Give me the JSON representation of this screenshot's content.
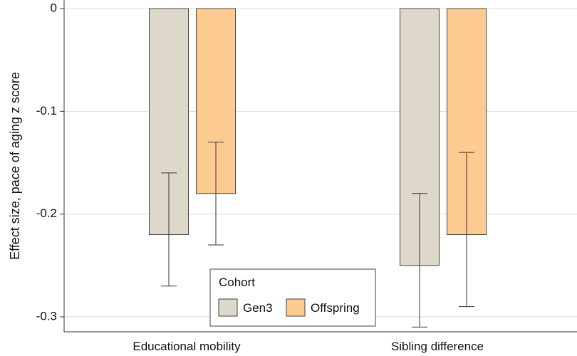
{
  "chart_data": {
    "type": "bar",
    "categories": [
      "Educational mobility",
      "Sibling difference"
    ],
    "ylabel": "Effect size, pace of aging z score",
    "xlabel": "",
    "ylim": [
      -0.315,
      0.0
    ],
    "yticks": [
      0,
      -0.1,
      -0.2,
      -0.3
    ],
    "ytick_labels": [
      "0",
      "-0.1",
      "-0.2",
      "-0.3"
    ],
    "grid": true,
    "legend": {
      "title": "Cohort",
      "position": "bottom-center"
    },
    "series": [
      {
        "name": "Gen3",
        "color": "#DDD8C9",
        "values": [
          -0.22,
          -0.25
        ],
        "ci_lower": [
          -0.27,
          -0.31
        ],
        "ci_upper": [
          -0.16,
          -0.18
        ]
      },
      {
        "name": "Offspring",
        "color": "#FDCB8F",
        "values": [
          -0.18,
          -0.22
        ],
        "ci_lower": [
          -0.23,
          -0.29
        ],
        "ci_upper": [
          -0.13,
          -0.14
        ]
      }
    ]
  }
}
